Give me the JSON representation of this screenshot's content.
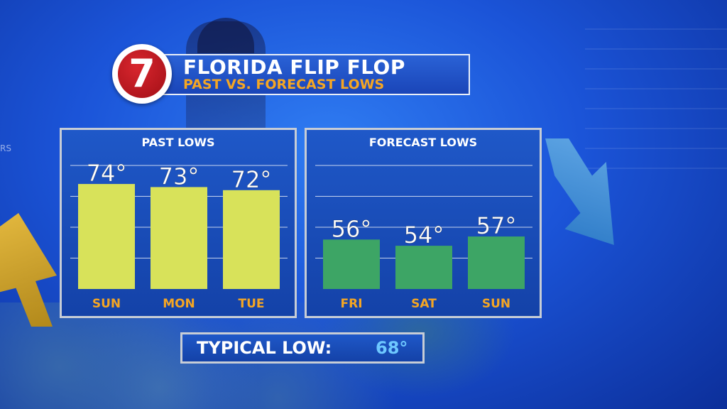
{
  "logo": {
    "text": "7"
  },
  "title": {
    "main": "FLORIDA FLIP FLOP",
    "sub": "PAST VS. FORECAST LOWS"
  },
  "background": {
    "channel_label": "RS"
  },
  "typical_low": {
    "label": "TYPICAL LOW:",
    "value": "68°"
  },
  "colors": {
    "past_bar": "#d8e25a",
    "forecast_bar": "#3da565",
    "day_label": "#f5a623",
    "accent_value": "#6ec8ff",
    "panel_bg": "#1a4cbc"
  },
  "chart_data": [
    {
      "type": "bar",
      "title": "PAST LOWS",
      "categories": [
        "SUN",
        "MON",
        "TUE"
      ],
      "values": [
        74,
        73,
        72
      ],
      "value_labels": [
        "74°",
        "73°",
        "72°"
      ],
      "ylim": [
        40,
        80
      ],
      "grid": true
    },
    {
      "type": "bar",
      "title": "FORECAST LOWS",
      "categories": [
        "FRI",
        "SAT",
        "SUN"
      ],
      "values": [
        56,
        54,
        57
      ],
      "value_labels": [
        "56°",
        "54°",
        "57°"
      ],
      "ylim": [
        40,
        80
      ],
      "grid": true
    }
  ]
}
